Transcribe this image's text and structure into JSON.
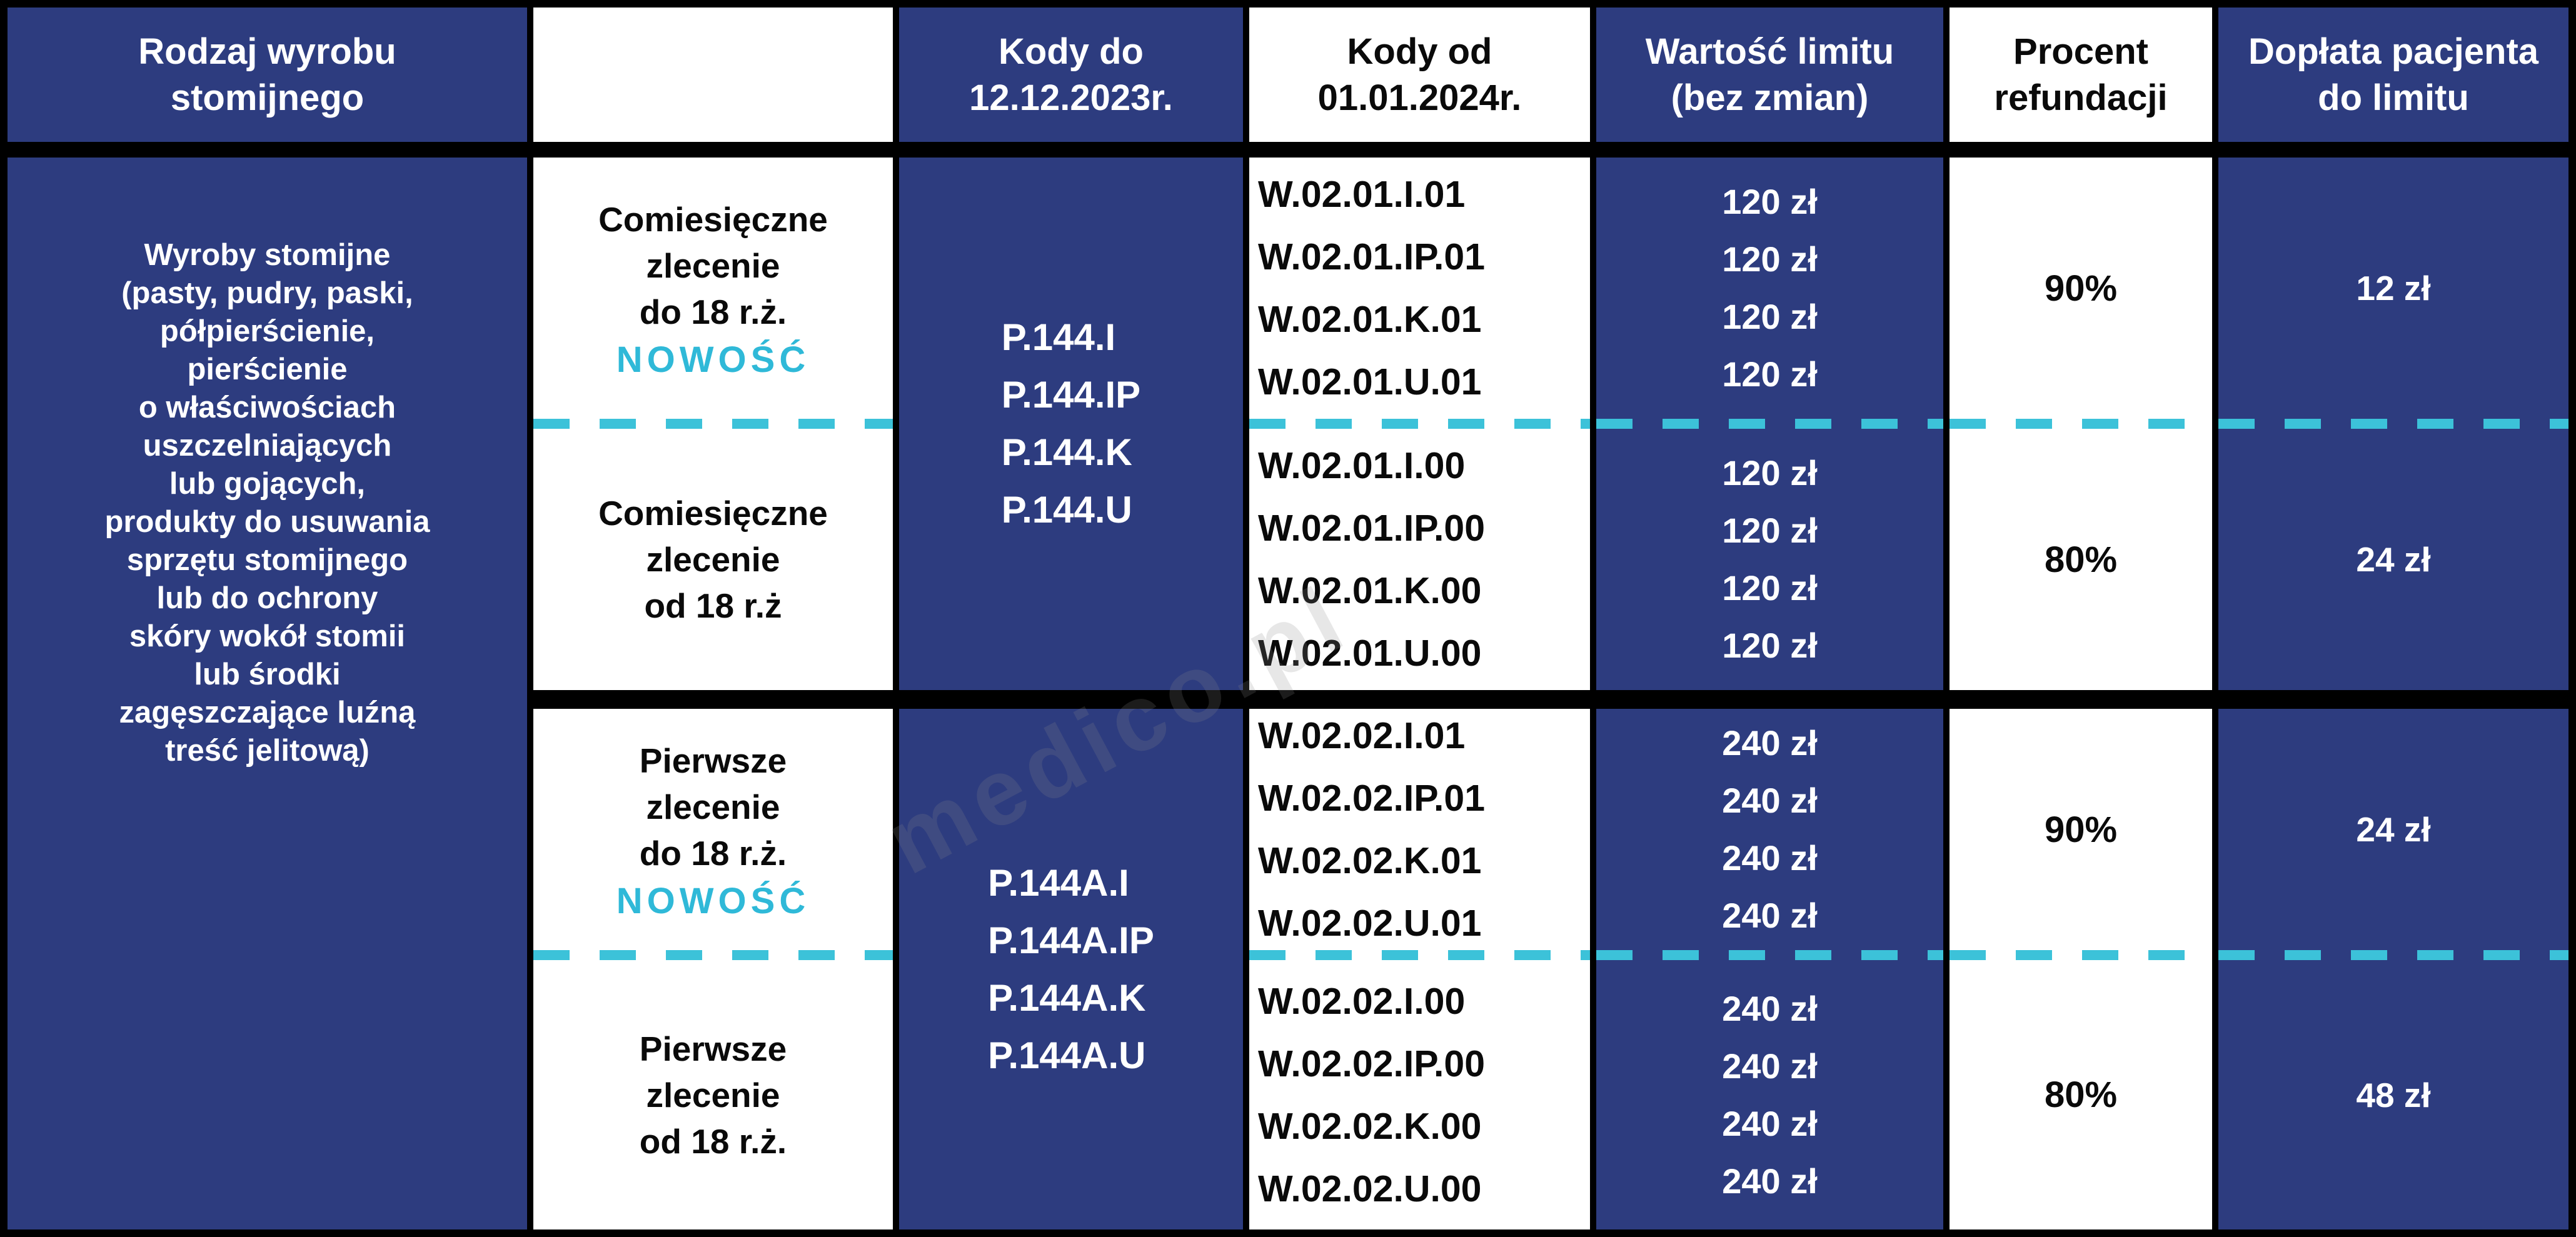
{
  "colors": {
    "navy": "#2d3c7f",
    "cyan_accent": "#2fb9d8",
    "dash_cyan": "#3cc2d9",
    "border_black": "#000000"
  },
  "watermark": "medico.pl",
  "header": {
    "product": "Rodzaj wyrobu\nstomijnego",
    "empty": "",
    "codes_old": "Kody do\n12.12.2023r.",
    "codes_new": "Kody od\n01.01.2024r.",
    "limit": "Wartość limitu\n(bez zmian)",
    "refund": "Procent\nrefundacji",
    "copay": "Dopłata pacjenta\ndo limitu"
  },
  "product_description": "Wyroby stomijne\n(pasty, pudry, paski,\npółpierścienie,\npierścienie\no właściwościach\nuszczelniających\nlub gojących,\nprodukty do usuwania\nsprzętu stomijnego\nlub do ochrony\nskóry wokół stomii\nlub środki\nzagęszczające luźną\ntreść jelitową)",
  "groups": [
    {
      "codes_old": "P.144.I\nP.144.IP\nP.144.K\nP.144.U",
      "sub": [
        {
          "order": "Comiesięczne\nzlecenie\ndo 18 r.ż.",
          "badge": "NOWOŚĆ",
          "codes_new": "W.02.01.I.01\nW.02.01.IP.01\nW.02.01.K.01\nW.02.01.U.01",
          "limits": "120 zł\n120 zł\n120 zł\n120 zł",
          "refund": "90%",
          "copay": "12 zł"
        },
        {
          "order": "Comiesięczne\nzlecenie\nod 18 r.ż",
          "badge": "",
          "codes_new": "W.02.01.I.00\nW.02.01.IP.00\nW.02.01.K.00\nW.02.01.U.00",
          "limits": "120 zł\n120 zł\n120 zł\n120 zł",
          "refund": "80%",
          "copay": "24 zł"
        }
      ]
    },
    {
      "codes_old": "P.144A.I\nP.144A.IP\nP.144A.K\nP.144A.U",
      "sub": [
        {
          "order": "Pierwsze\nzlecenie\ndo 18 r.ż.",
          "badge": "NOWOŚĆ",
          "codes_new": "W.02.02.I.01\nW.02.02.IP.01\nW.02.02.K.01\nW.02.02.U.01",
          "limits": "240 zł\n240 zł\n240 zł\n240 zł",
          "refund": "90%",
          "copay": "24 zł"
        },
        {
          "order": "Pierwsze\nzlecenie\nod 18 r.ż.",
          "badge": "",
          "codes_new": "W.02.02.I.00\nW.02.02.IP.00\nW.02.02.K.00\nW.02.02.U.00",
          "limits": "240 zł\n240 zł\n240 zł\n240 zł",
          "refund": "80%",
          "copay": "48 zł"
        }
      ]
    }
  ],
  "chart_data": {
    "type": "table",
    "title": "Refundacja wyrobów stomijnych — kody i limity od 01.01.2024",
    "columns": [
      "Rodzaj wyrobu stomijnego",
      "",
      "Kody do 12.12.2023r.",
      "Kody od 01.01.2024r.",
      "Wartość limitu (bez zmian)",
      "Procent refundacji",
      "Dopłata pacjenta do limitu"
    ],
    "rows": [
      [
        "Wyroby stomijne (pasty, pudry, paski, półpierścienie, pierścienie o właściwościach uszczelniających lub gojących, produkty do usuwania sprzętu stomijnego lub do ochrony skóry wokół stomii lub środki zagęszczające luźną treść jelitową)",
        "Comiesięczne zlecenie do 18 r.ż. NOWOŚĆ",
        "P.144.I; P.144.IP; P.144.K; P.144.U",
        "W.02.01.I.01; W.02.01.IP.01; W.02.01.K.01; W.02.01.U.01",
        "120 zł; 120 zł; 120 zł; 120 zł",
        "90%",
        "12 zł"
      ],
      [
        "",
        "Comiesięczne zlecenie od 18 r.ż",
        "P.144.I; P.144.IP; P.144.K; P.144.U",
        "W.02.01.I.00; W.02.01.IP.00; W.02.01.K.00; W.02.01.U.00",
        "120 zł; 120 zł; 120 zł; 120 zł",
        "80%",
        "24 zł"
      ],
      [
        "",
        "Pierwsze zlecenie do 18 r.ż. NOWOŚĆ",
        "P.144A.I; P.144A.IP; P.144A.K; P.144A.U",
        "W.02.02.I.01; W.02.02.IP.01; W.02.02.K.01; W.02.02.U.01",
        "240 zł; 240 zł; 240 zł; 240 zł",
        "90%",
        "24 zł"
      ],
      [
        "",
        "Pierwsze zlecenie od 18 r.ż.",
        "P.144A.I; P.144A.IP; P.144A.K; P.144A.U",
        "W.02.02.I.00; W.02.02.IP.00; W.02.02.K.00; W.02.02.U.00",
        "240 zł; 240 zł; 240 zł; 240 zł",
        "80%",
        "48 zł"
      ]
    ]
  }
}
